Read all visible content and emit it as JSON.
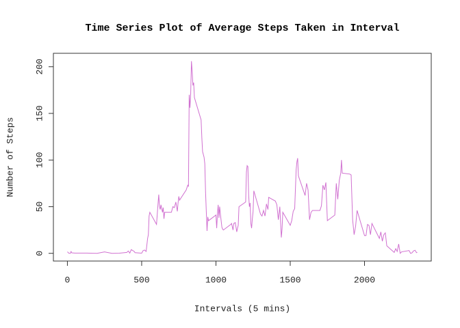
{
  "chart_data": {
    "type": "line",
    "title": "Time Series Plot of Average Steps Taken in Interval",
    "x_label": "Intervals (5 mins)",
    "y_label": "Number of Steps",
    "x": [
      0,
      10,
      20,
      25,
      30,
      50,
      100,
      150,
      200,
      250,
      300,
      350,
      400,
      410,
      420,
      430,
      440,
      450,
      455,
      500,
      510,
      520,
      530,
      540,
      545,
      550,
      555,
      600,
      610,
      615,
      620,
      625,
      630,
      640,
      645,
      650,
      655,
      700,
      705,
      710,
      720,
      730,
      740,
      745,
      750,
      755,
      800,
      810,
      815,
      820,
      825,
      830,
      835,
      840,
      845,
      850,
      855,
      900,
      905,
      910,
      920,
      925,
      930,
      935,
      940,
      945,
      950,
      1000,
      1005,
      1010,
      1015,
      1020,
      1025,
      1030,
      1035,
      1040,
      1045,
      1050,
      1100,
      1105,
      1115,
      1120,
      1130,
      1140,
      1145,
      1150,
      1155,
      1200,
      1205,
      1210,
      1215,
      1220,
      1225,
      1230,
      1235,
      1240,
      1245,
      1250,
      1255,
      1300,
      1310,
      1320,
      1330,
      1340,
      1350,
      1355,
      1400,
      1410,
      1420,
      1430,
      1440,
      1445,
      1450,
      1500,
      1510,
      1520,
      1530,
      1540,
      1545,
      1550,
      1555,
      1600,
      1610,
      1620,
      1630,
      1640,
      1650,
      1700,
      1710,
      1720,
      1730,
      1740,
      1750,
      1800,
      1810,
      1820,
      1830,
      1840,
      1845,
      1850,
      1900,
      1910,
      1920,
      1930,
      1940,
      1950,
      2000,
      2010,
      2020,
      2030,
      2040,
      2050,
      2100,
      2110,
      2120,
      2130,
      2140,
      2150,
      2200,
      2210,
      2220,
      2230,
      2240,
      2250,
      2300,
      2310,
      2320,
      2330,
      2340,
      2350,
      2355
    ],
    "series": [
      {
        "name": "Average steps",
        "color": "#d070d0",
        "values": [
          1.7,
          0.1,
          0,
          2,
          0.5,
          0.3,
          0.3,
          0.2,
          0,
          1.5,
          0,
          0.2,
          1,
          2.5,
          0.3,
          4,
          3,
          2,
          0.7,
          0.2,
          3,
          3.5,
          2,
          16,
          20,
          40,
          44,
          31,
          53,
          63,
          50,
          47,
          52,
          44,
          49,
          37,
          44,
          44,
          47,
          50,
          49,
          55,
          45,
          54,
          61,
          57,
          68,
          73,
          72,
          170,
          156,
          171,
          206,
          195,
          180,
          183,
          167,
          143,
          124,
          109,
          103,
          96,
          66,
          45,
          24,
          39,
          35,
          41,
          27,
          42,
          52,
          38,
          50,
          42,
          35,
          28,
          26,
          25,
          31,
          32,
          25,
          32,
          33,
          23,
          27,
          30,
          50,
          55,
          87,
          94,
          93,
          63,
          50,
          54,
          32,
          27,
          37,
          45,
          67,
          42,
          40,
          46,
          40,
          53,
          47,
          60,
          56,
          52,
          36,
          50,
          17,
          26,
          44,
          30,
          35,
          45,
          48,
          90,
          98,
          102,
          83,
          62,
          75,
          68,
          36,
          44,
          46,
          46,
          51,
          73,
          68,
          76,
          35,
          41,
          75,
          58,
          78,
          86,
          100,
          86,
          85,
          84,
          36,
          20,
          29,
          46,
          19,
          19,
          31,
          30,
          20,
          32,
          16,
          23,
          13,
          20,
          22,
          8,
          1,
          5,
          2,
          10,
          0,
          1.6,
          3,
          0,
          0.6,
          2.6,
          3.3,
          0.7,
          1.1
        ]
      }
    ],
    "xlim": [
      -94.2,
      2449.2
    ],
    "xticks": [
      0,
      500,
      1000,
      1500,
      2000
    ],
    "ylim": [
      -8.25,
      214.42
    ],
    "yticks": [
      0,
      50,
      100,
      150,
      200
    ]
  }
}
